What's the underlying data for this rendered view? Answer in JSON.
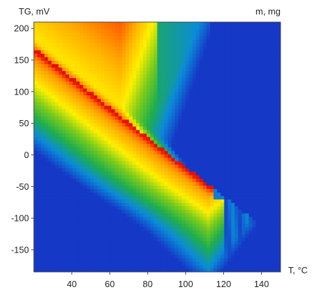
{
  "chart_data": {
    "type": "heatmap",
    "title": "",
    "ylabel": "TG, mV",
    "zlabel": "m, mg",
    "xlabel": "T, °C",
    "xlim": [
      20,
      150
    ],
    "ylim": [
      -185,
      210
    ],
    "x_ticks": [
      40,
      60,
      80,
      100,
      120,
      140
    ],
    "y_ticks": [
      200,
      150,
      100,
      50,
      0,
      -50,
      -100,
      -150
    ],
    "colormap": [
      "#1538c6",
      "#0b8bd8",
      "#1fae4d",
      "#7acb1c",
      "#fff000",
      "#ffb000",
      "#ff5a00",
      "#e60f00"
    ],
    "grid": false,
    "legend": "none"
  }
}
